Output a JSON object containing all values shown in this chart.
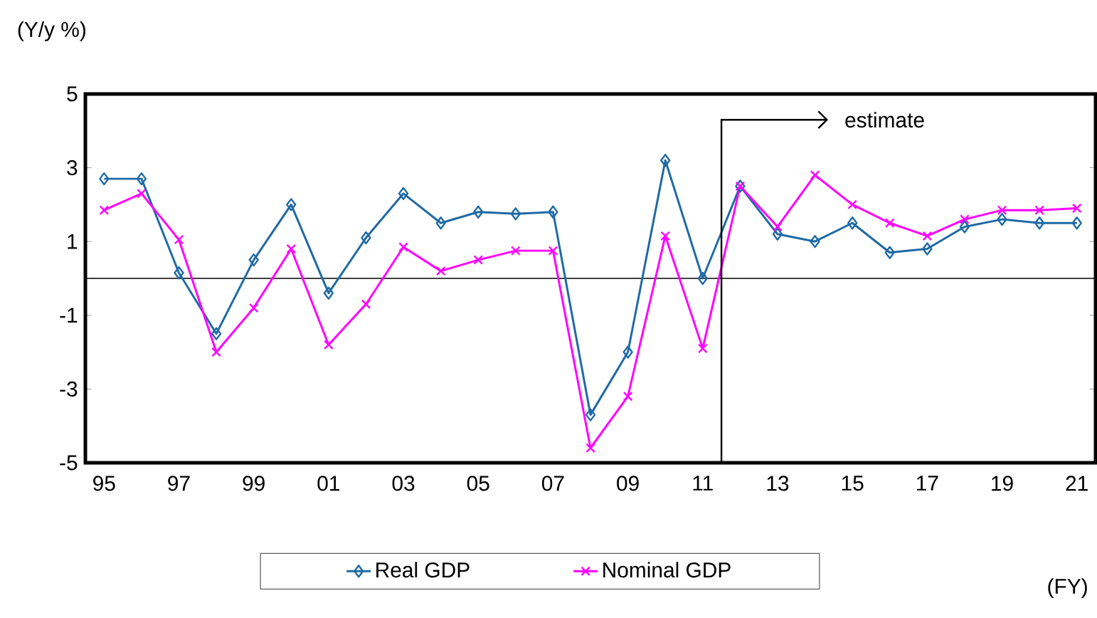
{
  "chart_data": {
    "type": "line",
    "categories": [
      "95",
      null,
      "97",
      null,
      "99",
      null,
      "01",
      null,
      "03",
      null,
      "05",
      null,
      "07",
      null,
      "09",
      null,
      "11",
      null,
      "13",
      null,
      "15",
      null,
      "17",
      null,
      "19",
      null,
      "21"
    ],
    "series": [
      {
        "name": "Real GDP",
        "color": "#1f6aa5",
        "marker": "diamond",
        "values": [
          2.7,
          2.7,
          0.15,
          -1.5,
          0.5,
          2.0,
          -0.4,
          1.1,
          2.3,
          1.5,
          1.8,
          1.75,
          1.8,
          -3.7,
          -2.0,
          3.2,
          0.0,
          2.5,
          1.2,
          1.0,
          1.5,
          0.7,
          0.8,
          1.4,
          1.6,
          1.5,
          1.5
        ]
      },
      {
        "name": "Nominal GDP",
        "color": "#ff00ff",
        "marker": "cross",
        "values": [
          1.85,
          2.3,
          1.05,
          -2.0,
          -0.8,
          0.8,
          -1.8,
          -0.7,
          0.85,
          0.2,
          0.5,
          0.75,
          0.75,
          -4.6,
          -3.2,
          1.15,
          -1.9,
          2.5,
          1.4,
          2.8,
          2.0,
          1.5,
          1.15,
          1.6,
          1.85,
          1.85,
          1.9
        ]
      }
    ],
    "ylabel": "(Y/y %)",
    "xlabel": "(FY)",
    "ylim": [
      -5,
      5
    ],
    "yticks": [
      5,
      3,
      1,
      -1,
      -3,
      -5
    ],
    "ref_lines": [
      {
        "axis": "x",
        "value": "11",
        "label": "estimate",
        "color": "#000000"
      }
    ],
    "legend": "bottom",
    "grid": false,
    "line_style": "solid"
  }
}
